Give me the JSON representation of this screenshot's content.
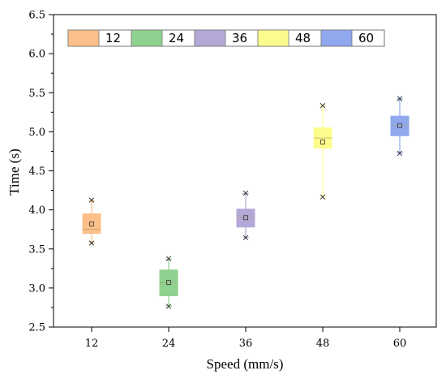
{
  "chart_data": {
    "type": "box",
    "xlabel": "Speed (mm/s)",
    "ylabel": "Time (s)",
    "categories": [
      "12",
      "24",
      "36",
      "48",
      "60"
    ],
    "ylim": [
      2.5,
      6.5
    ],
    "yticks": [
      "2.5",
      "3.0",
      "3.5",
      "4.0",
      "4.5",
      "5.0",
      "5.5",
      "6.0",
      "6.5"
    ],
    "legend_position": "top-left inside",
    "grid": false,
    "series": [
      {
        "name": "12",
        "color": "#FDBF8A",
        "min": 3.58,
        "q1": 3.7,
        "median": 3.75,
        "q3": 3.95,
        "max": 4.12,
        "mean": 3.82
      },
      {
        "name": "24",
        "color": "#8FD18F",
        "min": 2.77,
        "q1": 2.9,
        "median": 3.07,
        "q3": 3.23,
        "max": 3.37,
        "mean": 3.07
      },
      {
        "name": "36",
        "color": "#B4A8D6",
        "min": 3.65,
        "q1": 3.78,
        "median": 3.9,
        "q3": 4.01,
        "max": 4.21,
        "mean": 3.9
      },
      {
        "name": "48",
        "color": "#FCFC8C",
        "min": 4.17,
        "q1": 4.79,
        "median": 4.92,
        "q3": 5.05,
        "max": 5.33,
        "mean": 4.87
      },
      {
        "name": "60",
        "color": "#8FA8EE",
        "min": 4.73,
        "q1": 4.95,
        "median": 5.08,
        "q3": 5.2,
        "max": 5.42,
        "mean": 5.08
      }
    ]
  }
}
